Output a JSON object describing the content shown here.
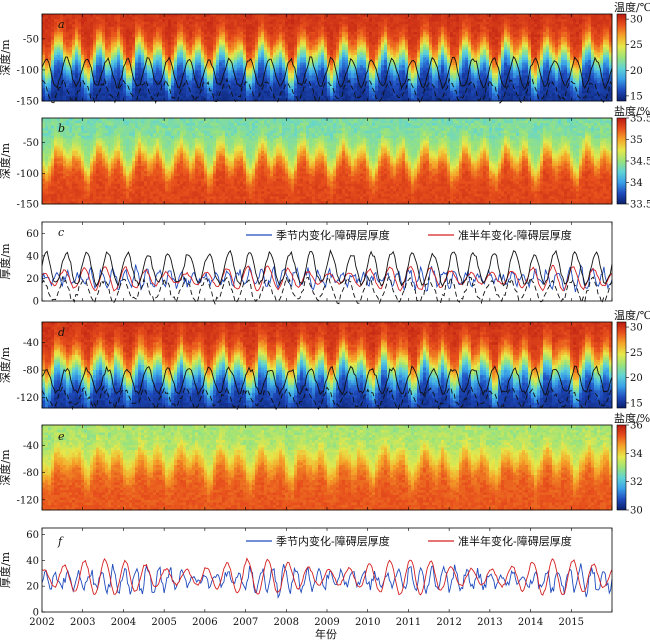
{
  "figure": {
    "x_axis": {
      "label": "年份",
      "ticks": [
        "2002",
        "2003",
        "2004",
        "2005",
        "2006",
        "2007",
        "2008",
        "2009",
        "2010",
        "2011",
        "2012",
        "2013",
        "2014",
        "2015"
      ],
      "range": [
        2002,
        2016
      ]
    }
  },
  "colormaps": {
    "temperature": [
      "#0a1f6b",
      "#1f4bbd",
      "#3aa0e8",
      "#5fd3d6",
      "#9be37a",
      "#e6e84a",
      "#f5a62a",
      "#e8501c",
      "#b81a12"
    ],
    "salinity": [
      "#0a1f6b",
      "#1f4bbd",
      "#3aa0e8",
      "#5fd3d6",
      "#9be37a",
      "#e6e84a",
      "#f5a62a",
      "#e8501c",
      "#b81a12"
    ]
  },
  "chart_data": [
    {
      "id": "a",
      "type": "heatmap",
      "panel_label": "a",
      "variable": "temperature",
      "ylabel": "深度/m",
      "yticks": [
        -50,
        -100,
        -150
      ],
      "ylim": [
        -150,
        -10
      ],
      "colorbar": {
        "title": "温度/℃",
        "ticks": [
          15,
          20,
          25,
          30
        ],
        "range": [
          14,
          31
        ]
      },
      "profile": {
        "surface": 30,
        "bottom": 15,
        "mean_thermocline_depth": 85,
        "seasonal_amplitude": 30
      }
    },
    {
      "id": "b",
      "type": "heatmap",
      "panel_label": "b",
      "variable": "salinity",
      "ylabel": "深度/m",
      "yticks": [
        -50,
        -100,
        -150
      ],
      "ylim": [
        -150,
        -10
      ],
      "colorbar": {
        "title": "盐度/‰",
        "ticks": [
          33.5,
          34,
          34.5,
          35,
          35.5
        ],
        "range": [
          33.5,
          35.5
        ]
      },
      "profile": {
        "surface": 34.4,
        "bottom": 35.3,
        "mean_halocline_depth": 75,
        "seasonal_amplitude": 25
      }
    },
    {
      "id": "c",
      "type": "line",
      "panel_label": "c",
      "ylabel": "厚度/m",
      "yticks": [
        0,
        20,
        40,
        60
      ],
      "ylim": [
        0,
        70
      ],
      "series": [
        {
          "name": "季节内变化-障碍层厚度",
          "color": "#1f4bbd",
          "mean": 20,
          "amplitude": 9,
          "period_years": 0.28
        },
        {
          "name": "准半年变化-障碍层厚度",
          "color": "#d62020",
          "mean": 20,
          "amplitude": 11,
          "period_years": 0.5
        }
      ]
    },
    {
      "id": "d",
      "type": "heatmap",
      "panel_label": "d",
      "variable": "temperature",
      "ylabel": "深度/m",
      "yticks": [
        -40,
        -80,
        -120
      ],
      "ylim": [
        -135,
        -10
      ],
      "colorbar": {
        "title": "温度/℃",
        "ticks": [
          15,
          20,
          25,
          30
        ],
        "range": [
          14,
          31
        ]
      },
      "profile": {
        "surface": 30,
        "bottom": 15,
        "mean_thermocline_depth": 80,
        "seasonal_amplitude": 25
      }
    },
    {
      "id": "e",
      "type": "heatmap",
      "panel_label": "e",
      "variable": "salinity",
      "ylabel": "深度/m",
      "yticks": [
        -40,
        -80,
        -120
      ],
      "ylim": [
        -135,
        -10
      ],
      "colorbar": {
        "title": "盐度/‰",
        "ticks": [
          30,
          32,
          34,
          36
        ],
        "range": [
          30,
          36
        ]
      },
      "profile": {
        "surface": 33.2,
        "bottom": 35.2,
        "mean_halocline_depth": 65,
        "seasonal_amplitude": 20
      }
    },
    {
      "id": "f",
      "type": "line",
      "panel_label": "f",
      "ylabel": "厚度/m",
      "yticks": [
        0,
        20,
        40,
        60
      ],
      "ylim": [
        0,
        65
      ],
      "series": [
        {
          "name": "季节内变化-障碍层厚度",
          "color": "#1f4bbd",
          "mean": 25,
          "amplitude": 10,
          "period_years": 0.28
        },
        {
          "name": "准半年变化-障碍层厚度",
          "color": "#d62020",
          "mean": 27,
          "amplitude": 14,
          "period_years": 0.5
        }
      ]
    }
  ]
}
